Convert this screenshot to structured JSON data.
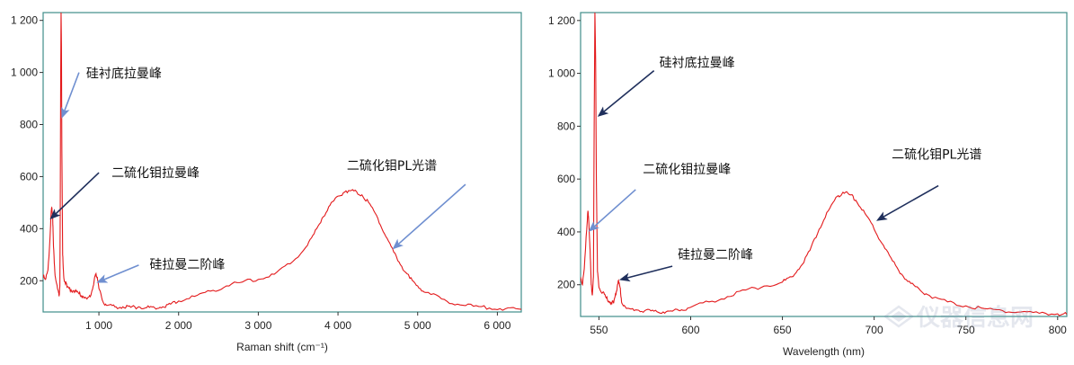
{
  "chart_data": [
    {
      "type": "line",
      "xlabel": "Raman shift (cm⁻¹)",
      "ylabel": "",
      "xlim": [
        300,
        6300
      ],
      "ylim": [
        80,
        1230
      ],
      "x_ticks": [
        1000,
        2000,
        3000,
        4000,
        5000,
        6000
      ],
      "x_tick_labels": [
        "1 000",
        "2 000",
        "3 000",
        "4 000",
        "5 000",
        "6 000"
      ],
      "y_ticks": [
        200,
        400,
        600,
        800,
        1000,
        1200
      ],
      "y_tick_labels": [
        "200",
        "400",
        "600",
        "800",
        "1 000",
        "1 200"
      ],
      "grid": false,
      "series": [
        {
          "color": "#e31a1c",
          "points": [
            [
              300,
              225
            ],
            [
              330,
              205
            ],
            [
              360,
              240
            ],
            [
              380,
              330
            ],
            [
              400,
              460
            ],
            [
              410,
              480
            ],
            [
              420,
              440
            ],
            [
              430,
              330
            ],
            [
              450,
              220
            ],
            [
              480,
              170
            ],
            [
              500,
              140
            ],
            [
              510,
              180
            ],
            [
              515,
              500
            ],
            [
              520,
              980
            ],
            [
              525,
              1230
            ],
            [
              530,
              1100
            ],
            [
              535,
              700
            ],
            [
              545,
              300
            ],
            [
              560,
              210
            ],
            [
              600,
              175
            ],
            [
              650,
              165
            ],
            [
              700,
              160
            ],
            [
              750,
              150
            ],
            [
              800,
              140
            ],
            [
              850,
              130
            ],
            [
              900,
              145
            ],
            [
              940,
              200
            ],
            [
              960,
              225
            ],
            [
              980,
              215
            ],
            [
              1000,
              170
            ],
            [
              1050,
              120
            ],
            [
              1100,
              105
            ],
            [
              1200,
              100
            ],
            [
              1300,
              100
            ],
            [
              1400,
              98
            ],
            [
              1500,
              100
            ],
            [
              1600,
              97
            ],
            [
              1700,
              96
            ],
            [
              1800,
              100
            ],
            [
              1900,
              110
            ],
            [
              2000,
              122
            ],
            [
              2200,
              140
            ],
            [
              2400,
              160
            ],
            [
              2600,
              180
            ],
            [
              2800,
              195
            ],
            [
              3000,
              205
            ],
            [
              3200,
              225
            ],
            [
              3400,
              265
            ],
            [
              3600,
              330
            ],
            [
              3700,
              380
            ],
            [
              3800,
              440
            ],
            [
              3900,
              490
            ],
            [
              4000,
              525
            ],
            [
              4100,
              545
            ],
            [
              4200,
              545
            ],
            [
              4300,
              530
            ],
            [
              4400,
              495
            ],
            [
              4500,
              440
            ],
            [
              4600,
              370
            ],
            [
              4700,
              310
            ],
            [
              4800,
              255
            ],
            [
              4900,
              210
            ],
            [
              5000,
              180
            ],
            [
              5100,
              155
            ],
            [
              5300,
              130
            ],
            [
              5500,
              110
            ],
            [
              5700,
              102
            ],
            [
              5900,
              95
            ],
            [
              6100,
              92
            ],
            [
              6300,
              90
            ]
          ]
        }
      ],
      "annotations": [
        {
          "text": "硅衬底拉曼峰",
          "tail": [
            750,
            1000
          ],
          "head": [
            540,
            830
          ]
        },
        {
          "text": "二硫化钼拉曼峰",
          "tail": [
            1000,
            615
          ],
          "head": [
            400,
            440
          ]
        },
        {
          "text": "硅拉曼二阶峰",
          "tail": [
            1500,
            260
          ],
          "head": [
            990,
            195
          ]
        },
        {
          "text": "二硫化钼PL光谱",
          "tail": [
            5600,
            570
          ],
          "head": [
            4700,
            325
          ]
        }
      ]
    },
    {
      "type": "line",
      "xlabel": "Wavelength (nm)",
      "ylabel": "",
      "xlim": [
        540,
        805
      ],
      "ylim": [
        80,
        1230
      ],
      "x_ticks": [
        550,
        600,
        650,
        700,
        750,
        800
      ],
      "x_tick_labels": [
        "550",
        "600",
        "650",
        "700",
        "750",
        "800"
      ],
      "y_ticks": [
        200,
        400,
        600,
        800,
        1000,
        1200
      ],
      "y_tick_labels": [
        "200",
        "400",
        "600",
        "800",
        "1 000",
        "1 200"
      ],
      "grid": false,
      "series": [
        {
          "color": "#e31a1c",
          "points": [
            [
              540,
              230
            ],
            [
              541,
              200
            ],
            [
              542,
              260
            ],
            [
              543,
              380
            ],
            [
              544,
              480
            ],
            [
              544.6,
              420
            ],
            [
              545.2,
              330
            ],
            [
              545.8,
              200
            ],
            [
              546.4,
              160
            ],
            [
              547,
              230
            ],
            [
              547.4,
              800
            ],
            [
              547.8,
              1230
            ],
            [
              548.2,
              1050
            ],
            [
              548.6,
              600
            ],
            [
              549.2,
              250
            ],
            [
              550,
              190
            ],
            [
              552,
              170
            ],
            [
              554,
              150
            ],
            [
              556,
              135
            ],
            [
              558,
              130
            ],
            [
              559.5,
              175
            ],
            [
              560.5,
              215
            ],
            [
              561.5,
              190
            ],
            [
              562.5,
              130
            ],
            [
              565,
              110
            ],
            [
              570,
              105
            ],
            [
              575,
              102
            ],
            [
              580,
              100
            ],
            [
              585,
              97
            ],
            [
              590,
              100
            ],
            [
              595,
              105
            ],
            [
              600,
              115
            ],
            [
              610,
              135
            ],
            [
              620,
              155
            ],
            [
              630,
              180
            ],
            [
              640,
              195
            ],
            [
              650,
              210
            ],
            [
              655,
              230
            ],
            [
              660,
              270
            ],
            [
              665,
              330
            ],
            [
              670,
              410
            ],
            [
              675,
              480
            ],
            [
              680,
              535
            ],
            [
              683,
              550
            ],
            [
              687,
              540
            ],
            [
              690,
              520
            ],
            [
              695,
              470
            ],
            [
              700,
              410
            ],
            [
              705,
              350
            ],
            [
              710,
              290
            ],
            [
              715,
              240
            ],
            [
              720,
              205
            ],
            [
              725,
              180
            ],
            [
              730,
              160
            ],
            [
              740,
              135
            ],
            [
              750,
              120
            ],
            [
              760,
              110
            ],
            [
              770,
              102
            ],
            [
              780,
              97
            ],
            [
              790,
              92
            ],
            [
              800,
              90
            ],
            [
              805,
              88
            ]
          ]
        }
      ],
      "annotations": [
        {
          "text": "硅衬底拉曼峰",
          "tail": [
            580,
            1010
          ],
          "head": [
            550,
            840
          ]
        },
        {
          "text": "二硫化钼拉曼峰",
          "tail": [
            570,
            560
          ],
          "head": [
            545,
            405
          ]
        },
        {
          "text": "硅拉曼二阶峰",
          "tail": [
            590,
            270
          ],
          "head": [
            562,
            220
          ]
        },
        {
          "text": "二硫化钼PL光谱",
          "tail": [
            735,
            575
          ],
          "head": [
            702,
            445
          ]
        }
      ]
    }
  ],
  "watermark": "仪器信息网"
}
